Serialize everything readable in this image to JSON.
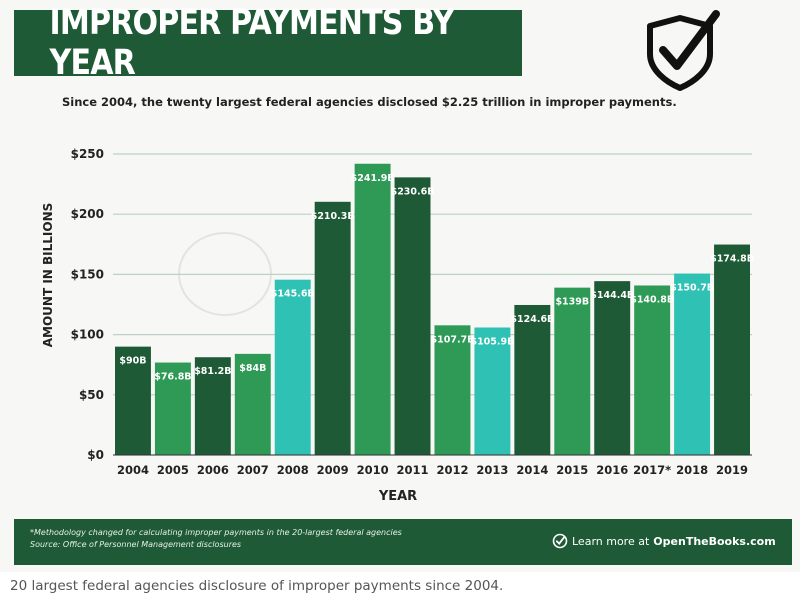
{
  "header": {
    "title": "IMPROPER PAYMENTS BY YEAR",
    "subtitle": "Since 2004, the twenty largest federal agencies disclosed $2.25 trillion in improper payments."
  },
  "footer": {
    "note_line1": "*Methodology changed for calculating improper payments in the 20-largest federal agencies",
    "note_line2": "Source: Office of Personnel Management disclosures",
    "learn_prefix": "Learn more at ",
    "learn_site": "OpenTheBooks.com"
  },
  "caption": "20 largest federal agencies disclosure of improper payments since 2004.",
  "icons": {
    "badge": "shield-check-icon",
    "learn": "check-circle-icon"
  },
  "colors": {
    "dark": "#1e5a35",
    "mid": "#2e9a56",
    "teal": "#2ec1b4",
    "brand": "#1e5a35"
  },
  "chart_data": {
    "type": "bar",
    "xlabel": "YEAR",
    "ylabel": "AMOUNT IN BILLIONS",
    "ylim": [
      0,
      250
    ],
    "yticks": [
      0,
      50,
      100,
      150,
      200,
      250
    ],
    "ytick_labels": [
      "$0",
      "$50",
      "$100",
      "$150",
      "$200",
      "$250"
    ],
    "grid": true,
    "categories": [
      "2004",
      "2005",
      "2006",
      "2007",
      "2008",
      "2009",
      "2010",
      "2011",
      "2012",
      "2013",
      "2014",
      "2015",
      "2016",
      "2017*",
      "2018",
      "2019"
    ],
    "values": [
      90,
      76.8,
      81.2,
      84,
      145.6,
      210.3,
      241.9,
      230.6,
      107.7,
      105.9,
      124.6,
      139,
      144.4,
      140.8,
      150.7,
      174.8
    ],
    "data_labels": [
      "$90B",
      "$76.8B",
      "$81.2B",
      "$84B",
      "$145.6B",
      "$210.3B",
      "$241.9B",
      "$230.6B",
      "$107.7B",
      "$105.9B",
      "$124.6B",
      "$139B",
      "$144.4B",
      "$140.8B",
      "$150.7B",
      "$174.8B"
    ],
    "bar_colors": [
      "#1e5a35",
      "#2e9a56",
      "#1e5a35",
      "#2e9a56",
      "#2ec1b4",
      "#1e5a35",
      "#2e9a56",
      "#1e5a35",
      "#2e9a56",
      "#2ec1b4",
      "#1e5a35",
      "#2e9a56",
      "#1e5a35",
      "#2e9a56",
      "#2ec1b4",
      "#1e5a35"
    ]
  }
}
